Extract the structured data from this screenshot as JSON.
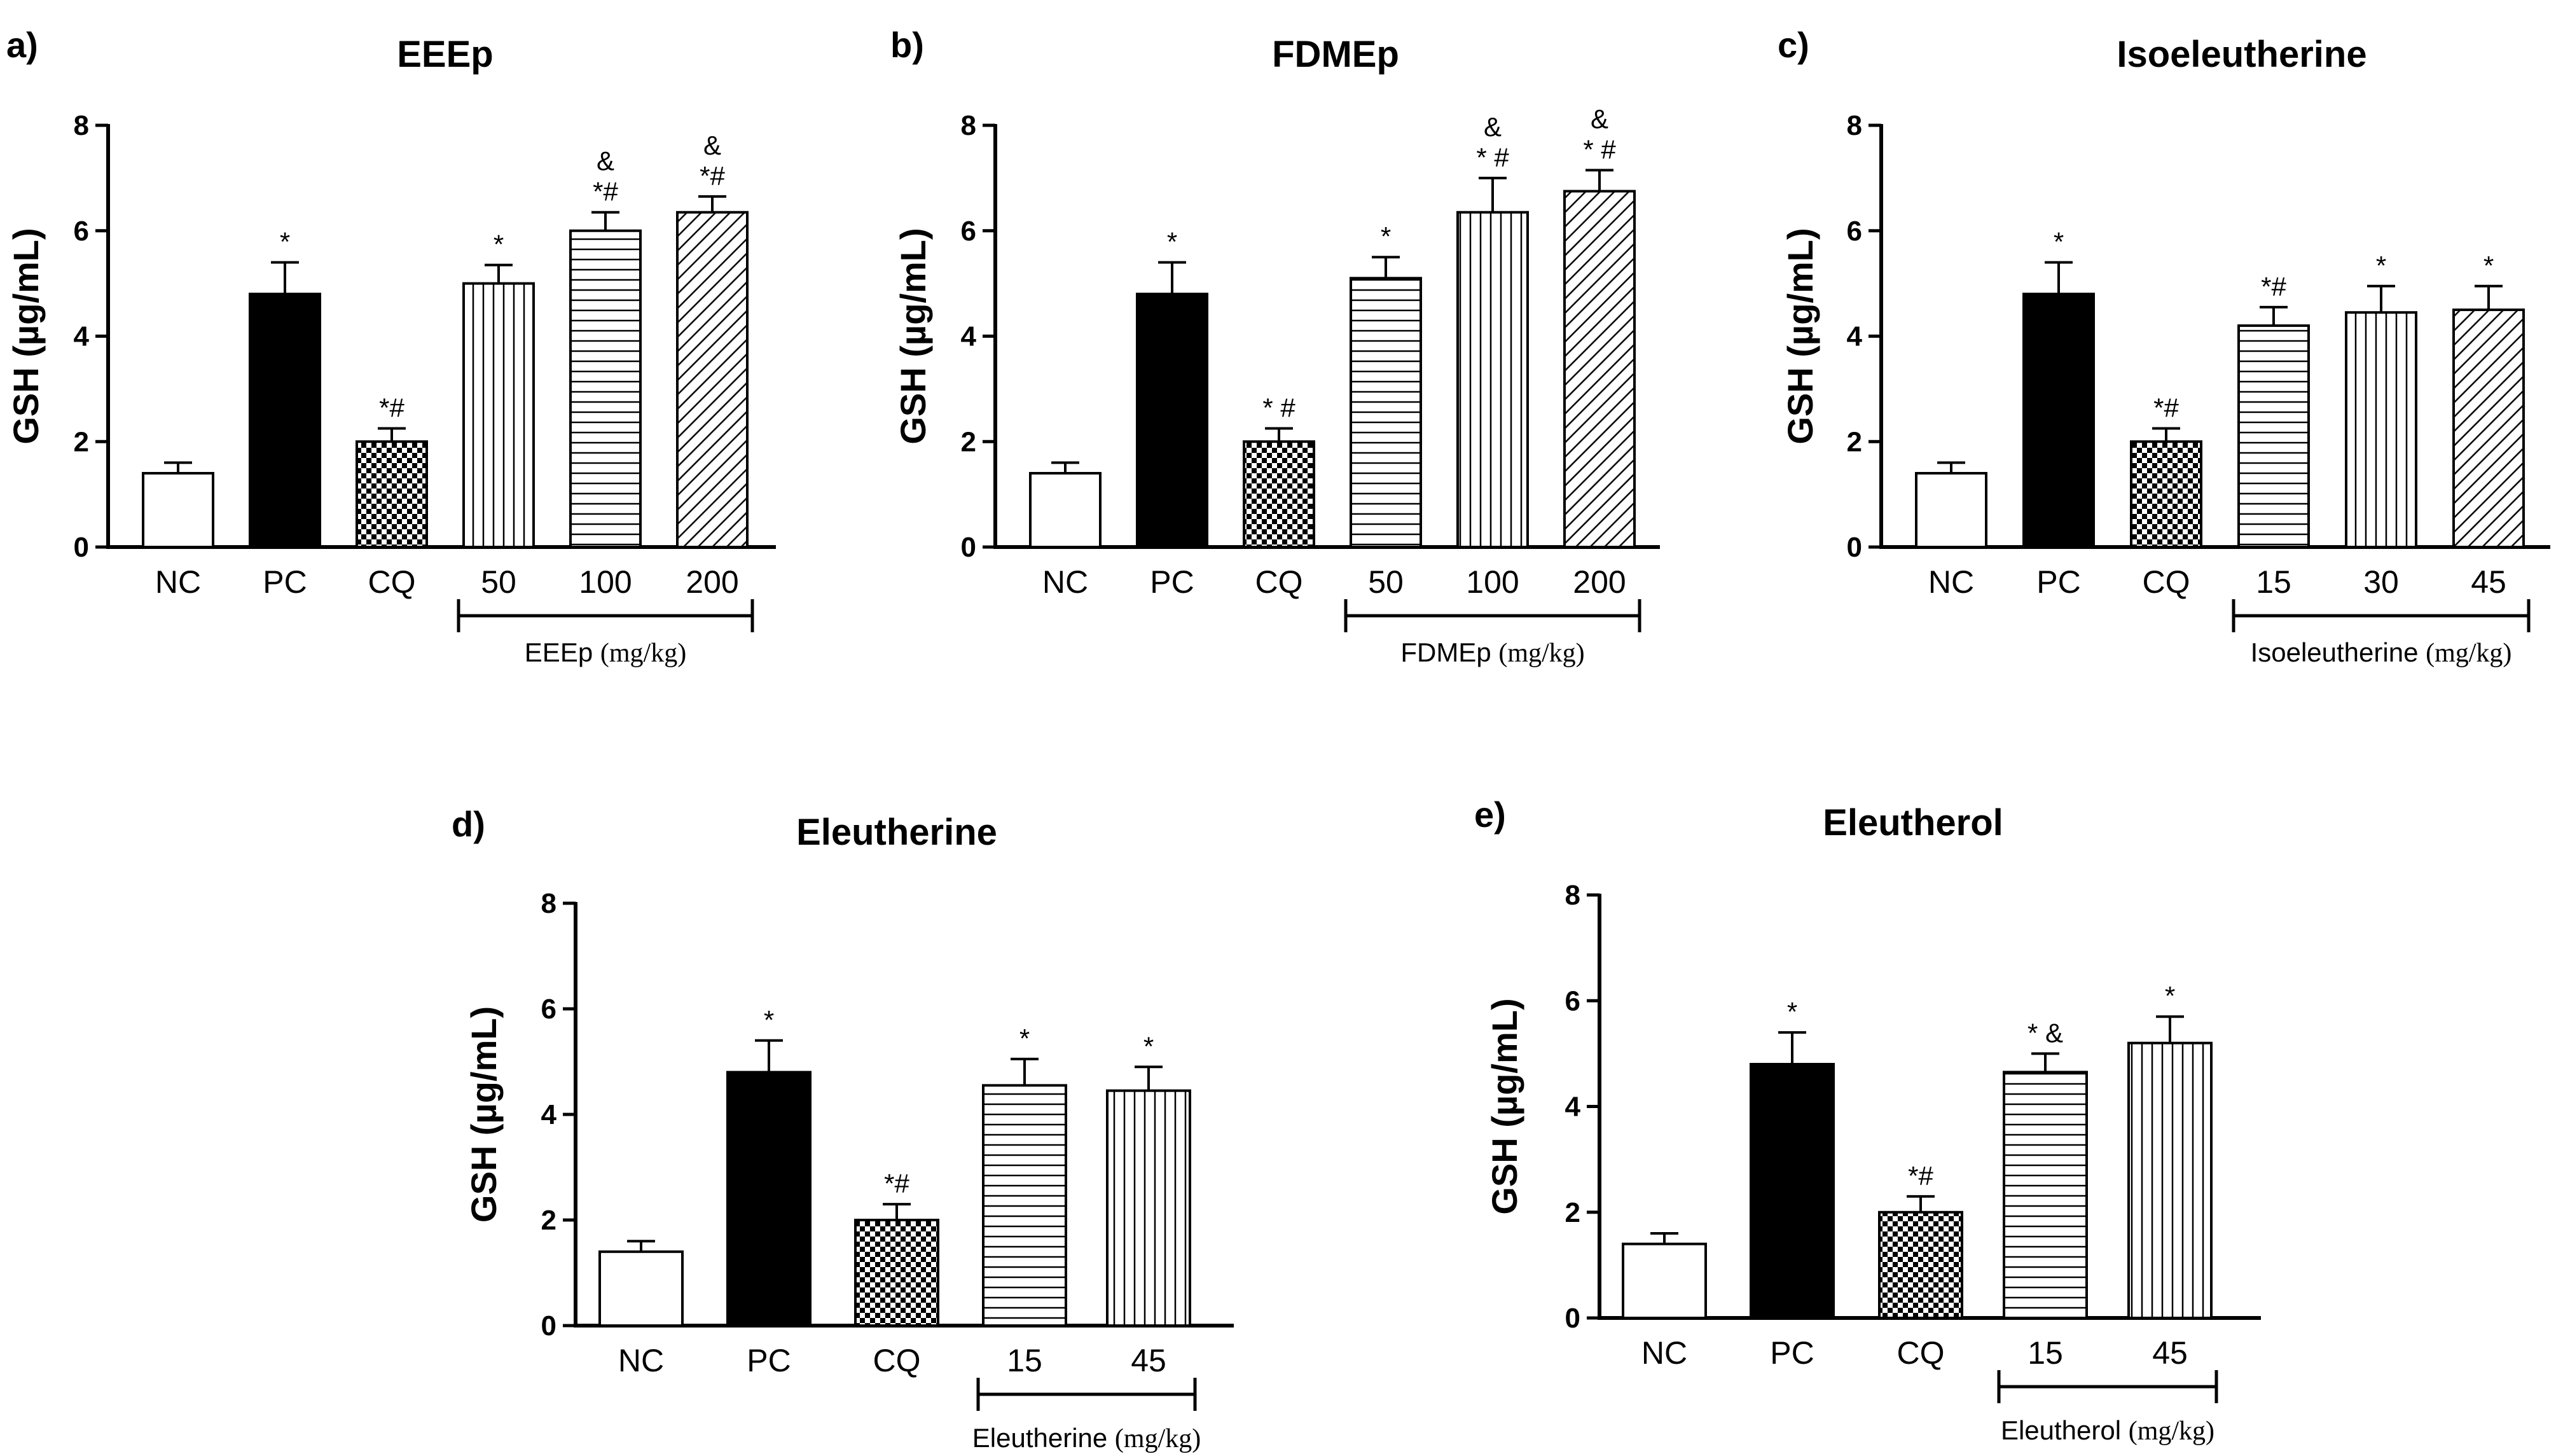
{
  "chart_data": [
    {
      "type": "bar",
      "panel_label": "a)",
      "title": "EEEp",
      "ylabel": "GSH (µg/mL)",
      "ylim": [
        0,
        8
      ],
      "yticks": [
        0,
        2,
        4,
        6,
        8
      ],
      "categories": [
        "NC",
        "PC",
        "CQ",
        "50",
        "100",
        "200"
      ],
      "values": [
        1.4,
        4.8,
        2.0,
        5.0,
        6.0,
        6.35
      ],
      "errors": [
        0.2,
        0.6,
        0.25,
        0.35,
        0.35,
        0.3
      ],
      "fills": [
        "white",
        "black",
        "checker",
        "vertical",
        "horizontal",
        "diagonal"
      ],
      "annotations": [
        "",
        "*",
        "*#",
        "*",
        "&\n*#",
        "&\n*#"
      ],
      "group": {
        "name": "EEEp",
        "unit": "(mg/kg)",
        "start_index": 3,
        "end_index": 5
      }
    },
    {
      "type": "bar",
      "panel_label": "b)",
      "title": "FDMEp",
      "ylabel": "GSH (µg/mL)",
      "ylim": [
        0,
        8
      ],
      "yticks": [
        0,
        2,
        4,
        6,
        8
      ],
      "categories": [
        "NC",
        "PC",
        "CQ",
        "50",
        "100",
        "200"
      ],
      "values": [
        1.4,
        4.8,
        2.0,
        5.1,
        6.35,
        6.75
      ],
      "errors": [
        0.2,
        0.6,
        0.25,
        0.4,
        0.65,
        0.4
      ],
      "fills": [
        "white",
        "black",
        "checker",
        "horizontal",
        "vertical",
        "diagonal"
      ],
      "annotations": [
        "",
        "*",
        "* #",
        "*",
        "&\n* #",
        "&\n* #"
      ],
      "group": {
        "name": "FDMEp",
        "unit": "(mg/kg)",
        "start_index": 3,
        "end_index": 5
      }
    },
    {
      "type": "bar",
      "panel_label": "c)",
      "title": "Isoeleutherine",
      "ylabel": "GSH (µg/mL)",
      "ylim": [
        0,
        8
      ],
      "yticks": [
        0,
        2,
        4,
        6,
        8
      ],
      "categories": [
        "NC",
        "PC",
        "CQ",
        "15",
        "30",
        "45"
      ],
      "values": [
        1.4,
        4.8,
        2.0,
        4.2,
        4.45,
        4.5
      ],
      "errors": [
        0.2,
        0.6,
        0.25,
        0.35,
        0.5,
        0.45
      ],
      "fills": [
        "white",
        "black",
        "checker",
        "horizontal",
        "vertical",
        "diagonal"
      ],
      "annotations": [
        "",
        "*",
        "*#",
        "*#",
        "*",
        "*"
      ],
      "group": {
        "name": "Isoeleutherine",
        "unit": "(mg/kg)",
        "start_index": 3,
        "end_index": 5
      }
    },
    {
      "type": "bar",
      "panel_label": "d)",
      "title": "Eleutherine",
      "ylabel": "GSH (µg/mL)",
      "ylim": [
        0,
        8
      ],
      "yticks": [
        0,
        2,
        4,
        6,
        8
      ],
      "categories": [
        "NC",
        "PC",
        "CQ",
        "15",
        "45"
      ],
      "values": [
        1.4,
        4.8,
        2.0,
        4.55,
        4.45
      ],
      "errors": [
        0.2,
        0.6,
        0.3,
        0.5,
        0.45
      ],
      "fills": [
        "white",
        "black",
        "checker",
        "horizontal",
        "vertical"
      ],
      "annotations": [
        "",
        "*",
        "*#",
        "*",
        "*"
      ],
      "group": {
        "name": "Eleutherine",
        "unit": "(mg/kg)",
        "start_index": 3,
        "end_index": 4
      }
    },
    {
      "type": "bar",
      "panel_label": "e)",
      "title": "Eleutherol",
      "ylabel": "GSH (µg/mL)",
      "ylim": [
        0,
        8
      ],
      "yticks": [
        0,
        2,
        4,
        6,
        8
      ],
      "categories": [
        "NC",
        "PC",
        "CQ",
        "15",
        "45"
      ],
      "values": [
        1.4,
        4.8,
        2.0,
        4.65,
        5.2
      ],
      "errors": [
        0.2,
        0.6,
        0.3,
        0.35,
        0.5
      ],
      "fills": [
        "white",
        "black",
        "checker",
        "horizontal",
        "vertical"
      ],
      "annotations": [
        "",
        "*",
        "*#",
        "* &",
        "*"
      ],
      "group": {
        "name": "Eleutherol",
        "unit": "(mg/kg)",
        "start_index": 3,
        "end_index": 4
      }
    }
  ]
}
